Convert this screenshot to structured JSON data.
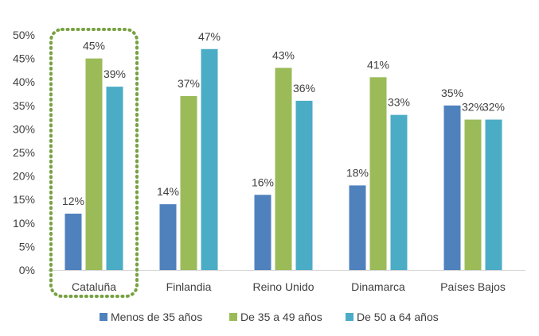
{
  "chart_data": {
    "type": "bar",
    "categories": [
      "Cataluña",
      "Finlandia",
      "Reino Unido",
      "Dinamarca",
      "Países Bajos"
    ],
    "series": [
      {
        "name": "Menos de 35 años",
        "color": "#4f81bd",
        "values": [
          12,
          14,
          16,
          18,
          35
        ],
        "labels": [
          "12%",
          "14%",
          "16%",
          "18%",
          "35%"
        ]
      },
      {
        "name": "De 35 a 49 años",
        "color": "#9bbb59",
        "values": [
          45,
          37,
          43,
          41,
          32
        ],
        "labels": [
          "45%",
          "37%",
          "43%",
          "41%",
          "32%"
        ]
      },
      {
        "name": "De 50 a 64 años",
        "color": "#4bacc6",
        "values": [
          39,
          47,
          36,
          33,
          32
        ],
        "labels": [
          "39%",
          "47%",
          "36%",
          "33%",
          "32%"
        ]
      }
    ],
    "yticks": [
      "0%",
      "5%",
      "10%",
      "15%",
      "20%",
      "25%",
      "30%",
      "35%",
      "40%",
      "45%",
      "50%"
    ],
    "ylim": [
      0,
      50
    ],
    "unit": "%",
    "grid": false,
    "legend_position": "bottom",
    "highlighted_category": "Cataluña",
    "highlight_color": "#77a142"
  }
}
